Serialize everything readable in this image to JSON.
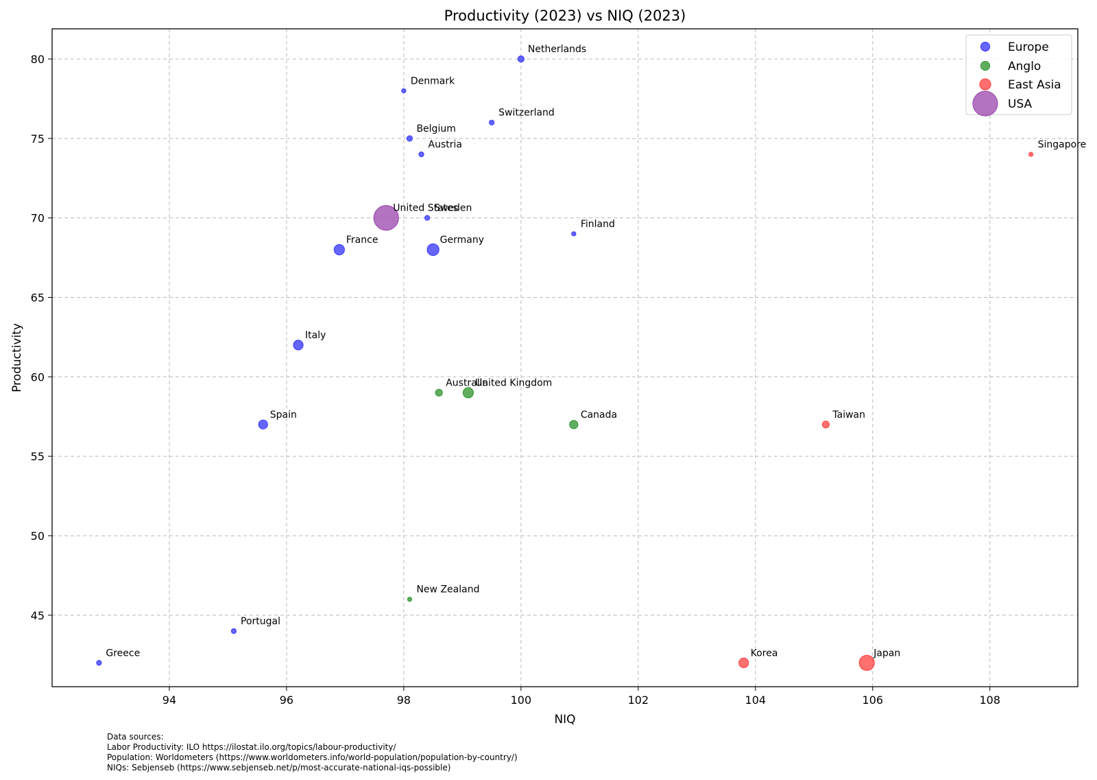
{
  "chart_data": {
    "type": "scatter",
    "title": "Productivity (2023) vs NIQ (2023)",
    "xlabel": "NIQ",
    "ylabel": "Productivity",
    "xlim": [
      92.0,
      109.5
    ],
    "ylim": [
      40.5,
      81.9
    ],
    "xticks": [
      94,
      96,
      98,
      100,
      102,
      104,
      106,
      108
    ],
    "yticks": [
      45,
      50,
      55,
      60,
      65,
      70,
      75,
      80
    ],
    "grid": true,
    "legend_position": "top-right",
    "legend": [
      {
        "name": "Europe",
        "color": "#4040ff"
      },
      {
        "name": "Anglo",
        "color": "#3a9a3a"
      },
      {
        "name": "East Asia",
        "color": "#ff4c4c"
      },
      {
        "name": "USA",
        "color": "#a050b0"
      }
    ],
    "points": [
      {
        "label": "Netherlands",
        "group": "Europe",
        "x": 100.0,
        "y": 80,
        "size": 4.5
      },
      {
        "label": "Denmark",
        "group": "Europe",
        "x": 98.0,
        "y": 78,
        "size": 3
      },
      {
        "label": "Switzerland",
        "group": "Europe",
        "x": 99.5,
        "y": 76,
        "size": 3.5
      },
      {
        "label": "Belgium",
        "group": "Europe",
        "x": 98.1,
        "y": 75,
        "size": 4
      },
      {
        "label": "Austria",
        "group": "Europe",
        "x": 98.3,
        "y": 74,
        "size": 3.5
      },
      {
        "label": "United States",
        "group": "USA",
        "x": 97.7,
        "y": 70,
        "size": 18
      },
      {
        "label": "Sweden",
        "group": "Europe",
        "x": 98.4,
        "y": 70,
        "size": 3.5
      },
      {
        "label": "Finland",
        "group": "Europe",
        "x": 100.9,
        "y": 69,
        "size": 3
      },
      {
        "label": "France",
        "group": "Europe",
        "x": 96.9,
        "y": 68,
        "size": 7.5
      },
      {
        "label": "Germany",
        "group": "Europe",
        "x": 98.5,
        "y": 68,
        "size": 8.5
      },
      {
        "label": "Italy",
        "group": "Europe",
        "x": 96.2,
        "y": 62,
        "size": 7
      },
      {
        "label": "Spain",
        "group": "Europe",
        "x": 95.6,
        "y": 57,
        "size": 6.5
      },
      {
        "label": "Portugal",
        "group": "Europe",
        "x": 95.1,
        "y": 44,
        "size": 3.5
      },
      {
        "label": "Greece",
        "group": "Europe",
        "x": 92.8,
        "y": 42,
        "size": 3.5
      },
      {
        "label": "Australia",
        "group": "Anglo",
        "x": 98.6,
        "y": 59,
        "size": 5
      },
      {
        "label": "United Kingdom",
        "group": "Anglo",
        "x": 99.1,
        "y": 59,
        "size": 7.5
      },
      {
        "label": "Canada",
        "group": "Anglo",
        "x": 100.9,
        "y": 57,
        "size": 6
      },
      {
        "label": "New Zealand",
        "group": "Anglo",
        "x": 98.1,
        "y": 46,
        "size": 3
      },
      {
        "label": "Singapore",
        "group": "East Asia",
        "x": 108.7,
        "y": 74,
        "size": 3
      },
      {
        "label": "Taiwan",
        "group": "East Asia",
        "x": 105.2,
        "y": 57,
        "size": 5
      },
      {
        "label": "Korea",
        "group": "East Asia",
        "x": 103.8,
        "y": 42,
        "size": 7
      },
      {
        "label": "Japan",
        "group": "East Asia",
        "x": 105.9,
        "y": 42,
        "size": 11
      }
    ]
  },
  "sources": {
    "heading": "Data sources:",
    "lines": [
      "Labor Productivity: ILO https://ilostat.ilo.org/topics/labour-productivity/",
      "Population: Worldometers (https://www.worldometers.info/world-population/population-by-country/)",
      "NIQs: Sebjenseb (https://www.sebjenseb.net/p/most-accurate-national-iqs-possible)"
    ]
  }
}
